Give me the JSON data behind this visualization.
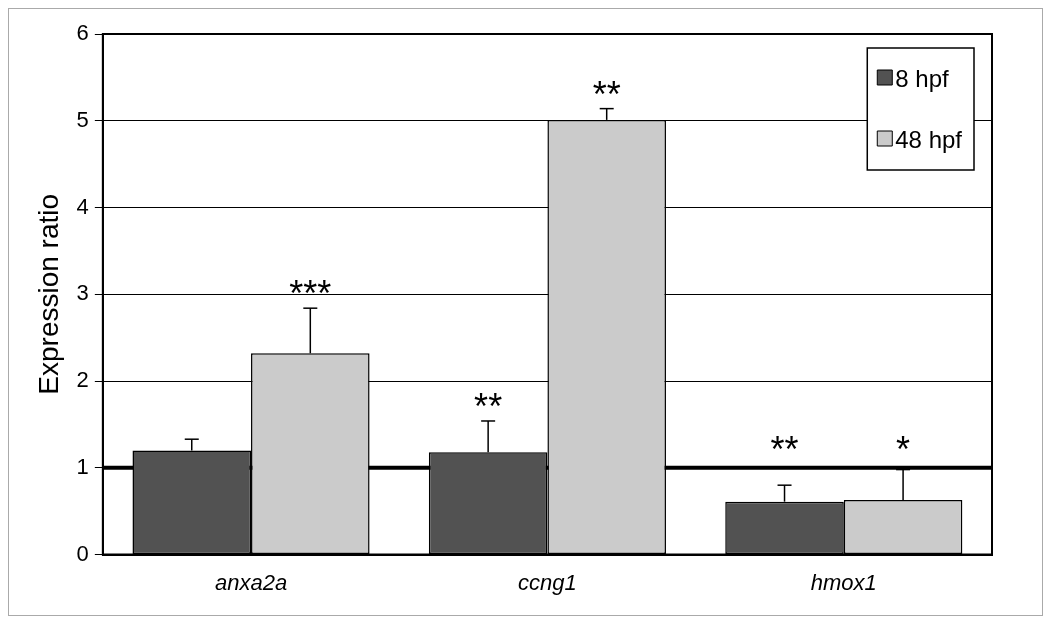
{
  "chart_data": {
    "type": "bar",
    "ylabel": "Expression ratio",
    "categories": [
      "anxa2a",
      "ccng1",
      "hmox1"
    ],
    "series": [
      {
        "name": "8 hpf",
        "color": "#525252",
        "values": [
          1.2,
          1.18,
          0.61
        ],
        "errors": [
          [
            1.2,
            1.33
          ],
          [
            1.18,
            1.54
          ],
          [
            0.61,
            0.8
          ]
        ],
        "value_labels": [
          null,
          "**",
          "**"
        ]
      },
      {
        "name": "48 hpf",
        "color": "#cbcbcb",
        "values": [
          2.32,
          5.01,
          0.63
        ],
        "errors": [
          [
            2.32,
            2.84
          ],
          [
            5.01,
            5.14
          ],
          [
            0.63,
            0.98
          ]
        ],
        "value_labels": [
          "***",
          "**",
          "*"
        ]
      }
    ],
    "ylim": [
      0,
      6
    ],
    "yticks": [
      0,
      1,
      2,
      3,
      4,
      5,
      6
    ],
    "grid": "y",
    "legend": "top right",
    "ref_lines": [
      {
        "axis": "y",
        "value": 1,
        "color": "#000000"
      }
    ]
  }
}
